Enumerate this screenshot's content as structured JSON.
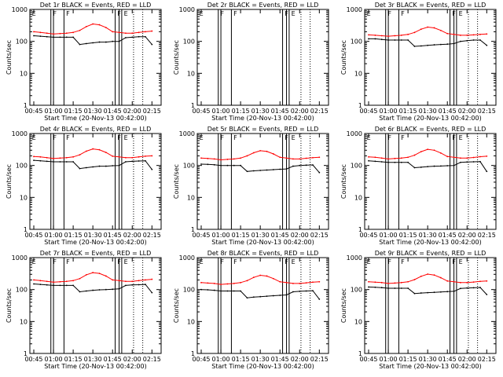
{
  "figure": {
    "common": {
      "ylabel": "Counts/sec",
      "xlabel": "Start Time (20-Nov-13 00:42:00)",
      "x_ticks": [
        "00:45",
        "01:00",
        "01:15",
        "01:30",
        "01:45",
        "02:00",
        "02:15"
      ],
      "y_ticks": [
        "1",
        "10",
        "100",
        "1000"
      ],
      "flag_labels": [
        "E",
        "F",
        "F",
        "F",
        "E"
      ],
      "colors": {
        "events": "#000000",
        "lld": "#ff0000",
        "axes": "#000000"
      }
    }
  },
  "chart_data": [
    {
      "type": "line",
      "title": "Det 1r  BLACK = Events, RED = LLD",
      "xlabel": "Start Time (20-Nov-13 00:42:00)",
      "ylabel": "Counts/sec",
      "ylim": [
        1,
        1000
      ],
      "yscale": "log",
      "xlim": [
        "00:42",
        "02:22"
      ],
      "x": [
        "00:45",
        "00:50",
        "00:55",
        "01:00",
        "01:05",
        "01:10",
        "01:15",
        "01:20",
        "01:25",
        "01:30",
        "01:35",
        "01:40",
        "01:45",
        "01:50",
        "01:55",
        "02:00",
        "02:05",
        "02:10",
        "02:15"
      ],
      "series": [
        {
          "name": "Events",
          "color": "#000000",
          "values": [
            150,
            145,
            140,
            135,
            135,
            135,
            135,
            80,
            85,
            90,
            95,
            95,
            100,
            100,
            130,
            135,
            140,
            140,
            80
          ]
        },
        {
          "name": "LLD",
          "color": "#ff0000",
          "values": [
            200,
            190,
            180,
            170,
            175,
            180,
            190,
            220,
            290,
            350,
            330,
            270,
            200,
            190,
            180,
            180,
            190,
            200,
            210
          ]
        }
      ]
    },
    {
      "type": "line",
      "title": "Det 2r  BLACK = Events, RED = LLD",
      "xlabel": "Start Time (20-Nov-13 00:42:00)",
      "ylabel": "Counts/sec",
      "ylim": [
        1,
        1000
      ],
      "yscale": "log",
      "xlim": [
        "00:42",
        "02:22"
      ],
      "x": [],
      "series": []
    },
    {
      "type": "line",
      "title": "Det 3r  BLACK = Events, RED = LLD",
      "xlabel": "Start Time (20-Nov-13 00:42:00)",
      "ylabel": "Counts/sec",
      "ylim": [
        1,
        1000
      ],
      "yscale": "log",
      "xlim": [
        "00:42",
        "02:22"
      ],
      "x": [
        "00:45",
        "00:50",
        "00:55",
        "01:00",
        "01:05",
        "01:10",
        "01:15",
        "01:20",
        "01:25",
        "01:30",
        "01:35",
        "01:40",
        "01:45",
        "01:50",
        "01:55",
        "02:00",
        "02:05",
        "02:10",
        "02:15"
      ],
      "series": [
        {
          "name": "Events",
          "color": "#000000",
          "values": [
            120,
            120,
            115,
            110,
            110,
            110,
            110,
            70,
            72,
            75,
            78,
            80,
            82,
            85,
            100,
            105,
            110,
            110,
            75
          ]
        },
        {
          "name": "LLD",
          "color": "#ff0000",
          "values": [
            160,
            155,
            150,
            145,
            150,
            155,
            165,
            190,
            240,
            280,
            265,
            220,
            175,
            165,
            155,
            155,
            160,
            165,
            170
          ]
        }
      ]
    },
    {
      "type": "line",
      "title": "Det 4r  BLACK = Events, RED = LLD",
      "xlabel": "Start Time (20-Nov-13 00:42:00)",
      "ylabel": "Counts/sec",
      "ylim": [
        1,
        1000
      ],
      "yscale": "log",
      "xlim": [
        "00:42",
        "02:22"
      ],
      "x": [
        "00:45",
        "00:50",
        "00:55",
        "01:00",
        "01:05",
        "01:10",
        "01:15",
        "01:20",
        "01:25",
        "01:30",
        "01:35",
        "01:40",
        "01:45",
        "01:50",
        "01:55",
        "02:00",
        "02:05",
        "02:10",
        "02:15"
      ],
      "series": [
        {
          "name": "Events",
          "color": "#000000",
          "values": [
            145,
            140,
            135,
            130,
            130,
            130,
            130,
            80,
            85,
            90,
            95,
            95,
            98,
            100,
            130,
            135,
            138,
            140,
            75
          ]
        },
        {
          "name": "LLD",
          "color": "#ff0000",
          "values": [
            190,
            185,
            175,
            165,
            170,
            175,
            185,
            215,
            280,
            330,
            310,
            255,
            195,
            185,
            175,
            175,
            185,
            195,
            200
          ]
        }
      ]
    },
    {
      "type": "line",
      "title": "Det 5r  BLACK = Events, RED = LLD",
      "xlabel": "Start Time (20-Nov-13 00:42:00)",
      "ylabel": "Counts/sec",
      "ylim": [
        1,
        1000
      ],
      "yscale": "log",
      "xlim": [
        "00:42",
        "02:22"
      ],
      "x": [
        "00:45",
        "00:50",
        "00:55",
        "01:00",
        "01:05",
        "01:10",
        "01:15",
        "01:20",
        "01:25",
        "01:30",
        "01:35",
        "01:40",
        "01:45",
        "01:50",
        "01:55",
        "02:00",
        "02:05",
        "02:10",
        "02:15"
      ],
      "series": [
        {
          "name": "Events",
          "color": "#000000",
          "values": [
            110,
            108,
            105,
            100,
            100,
            100,
            100,
            65,
            68,
            70,
            72,
            74,
            76,
            78,
            95,
            100,
            102,
            104,
            60
          ]
        },
        {
          "name": "LLD",
          "color": "#ff0000",
          "values": [
            170,
            165,
            160,
            150,
            155,
            160,
            170,
            200,
            250,
            290,
            275,
            230,
            180,
            170,
            160,
            160,
            168,
            175,
            180
          ]
        }
      ]
    },
    {
      "type": "line",
      "title": "Det 6r  BLACK = Events, RED = LLD",
      "xlabel": "Start Time (20-Nov-13 00:42:00)",
      "ylabel": "Counts/sec",
      "ylim": [
        1,
        1000
      ],
      "yscale": "log",
      "xlim": [
        "00:42",
        "02:22"
      ],
      "x": [
        "00:45",
        "00:50",
        "00:55",
        "01:00",
        "01:05",
        "01:10",
        "01:15",
        "01:20",
        "01:25",
        "01:30",
        "01:35",
        "01:40",
        "01:45",
        "01:50",
        "01:55",
        "02:00",
        "02:05",
        "02:10",
        "02:15"
      ],
      "series": [
        {
          "name": "Events",
          "color": "#000000",
          "values": [
            140,
            135,
            130,
            125,
            125,
            125,
            125,
            85,
            88,
            92,
            95,
            96,
            98,
            100,
            125,
            128,
            130,
            132,
            65
          ]
        },
        {
          "name": "LLD",
          "color": "#ff0000",
          "values": [
            185,
            180,
            170,
            160,
            165,
            170,
            180,
            210,
            270,
            320,
            300,
            245,
            190,
            180,
            170,
            170,
            178,
            188,
            195
          ]
        }
      ]
    },
    {
      "type": "line",
      "title": "Det 7r  BLACK = Events, RED = LLD",
      "xlabel": "Start Time (20-Nov-13 00:42:00)",
      "ylabel": "Counts/sec",
      "ylim": [
        1,
        1000
      ],
      "yscale": "log",
      "xlim": [
        "00:42",
        "02:22"
      ],
      "x": [
        "00:45",
        "00:50",
        "00:55",
        "01:00",
        "01:05",
        "01:10",
        "01:15",
        "01:20",
        "01:25",
        "01:30",
        "01:35",
        "01:40",
        "01:45",
        "01:50",
        "01:55",
        "02:00",
        "02:05",
        "02:10",
        "02:15"
      ],
      "series": [
        {
          "name": "Events",
          "color": "#000000",
          "values": [
            150,
            145,
            140,
            135,
            135,
            135,
            135,
            85,
            90,
            95,
            98,
            100,
            102,
            105,
            135,
            140,
            142,
            145,
            80
          ]
        },
        {
          "name": "LLD",
          "color": "#ff0000",
          "values": [
            200,
            190,
            180,
            170,
            175,
            180,
            190,
            220,
            290,
            340,
            320,
            265,
            200,
            190,
            180,
            180,
            190,
            200,
            210
          ]
        }
      ]
    },
    {
      "type": "line",
      "title": "Det 8r  BLACK = Events, RED = LLD",
      "xlabel": "Start Time (20-Nov-13 00:42:00)",
      "ylabel": "Counts/sec",
      "ylim": [
        1,
        1000
      ],
      "yscale": "log",
      "xlim": [
        "00:42",
        "02:22"
      ],
      "x": [
        "00:45",
        "00:50",
        "00:55",
        "01:00",
        "01:05",
        "01:10",
        "01:15",
        "01:20",
        "01:25",
        "01:30",
        "01:35",
        "01:40",
        "01:45",
        "01:50",
        "01:55",
        "02:00",
        "02:05",
        "02:10",
        "02:15"
      ],
      "series": [
        {
          "name": "Events",
          "color": "#000000",
          "values": [
            100,
            98,
            95,
            90,
            90,
            90,
            90,
            55,
            58,
            60,
            62,
            64,
            66,
            68,
            85,
            88,
            90,
            92,
            50
          ]
        },
        {
          "name": "LLD",
          "color": "#ff0000",
          "values": [
            165,
            160,
            155,
            145,
            150,
            155,
            165,
            190,
            240,
            280,
            265,
            220,
            175,
            165,
            155,
            155,
            162,
            170,
            175
          ]
        }
      ]
    },
    {
      "type": "line",
      "title": "Det 9r  BLACK = Events, RED = LLD",
      "xlabel": "Start Time (20-Nov-13 00:42:00)",
      "ylabel": "Counts/sec",
      "ylim": [
        1,
        1000
      ],
      "yscale": "log",
      "xlim": [
        "00:42",
        "02:22"
      ],
      "x": [
        "00:45",
        "00:50",
        "00:55",
        "01:00",
        "01:05",
        "01:10",
        "01:15",
        "01:20",
        "01:25",
        "01:30",
        "01:35",
        "01:40",
        "01:45",
        "01:50",
        "01:55",
        "02:00",
        "02:05",
        "02:10",
        "02:15"
      ],
      "series": [
        {
          "name": "Events",
          "color": "#000000",
          "values": [
            120,
            118,
            115,
            110,
            110,
            110,
            110,
            75,
            78,
            80,
            82,
            84,
            86,
            88,
            108,
            112,
            114,
            116,
            70
          ]
        },
        {
          "name": "LLD",
          "color": "#ff0000",
          "values": [
            175,
            170,
            165,
            155,
            160,
            165,
            175,
            205,
            260,
            305,
            285,
            235,
            185,
            175,
            165,
            165,
            172,
            180,
            185
          ]
        }
      ]
    }
  ]
}
